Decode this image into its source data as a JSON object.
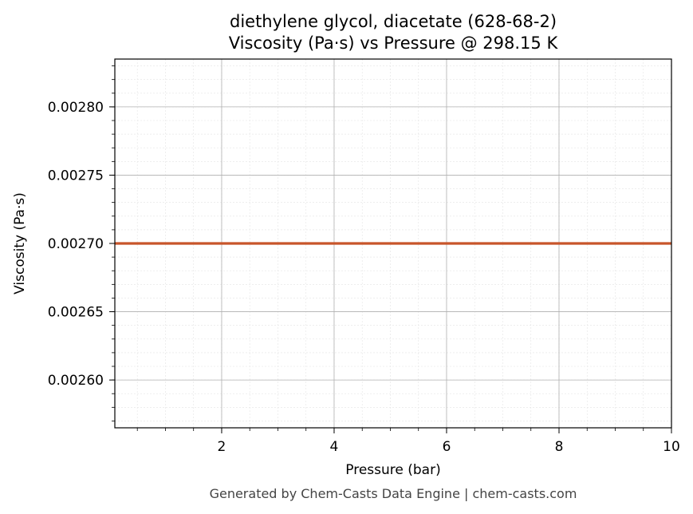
{
  "chart_data": {
    "type": "line",
    "title_line1": "diethylene glycol, diacetate (628-68-2)",
    "title_line2": "Viscosity (Pa·s) vs Pressure @ 298.15 K",
    "xlabel": "Pressure (bar)",
    "ylabel": "Viscosity (Pa·s)",
    "xlim": [
      0.1,
      10
    ],
    "ylim": [
      0.002565,
      0.002835
    ],
    "x_ticks": [
      2,
      4,
      6,
      8,
      10
    ],
    "x_tick_labels": [
      "2",
      "4",
      "6",
      "8",
      "10"
    ],
    "y_ticks": [
      0.0026,
      0.00265,
      0.0027,
      0.00275,
      0.0028
    ],
    "y_tick_labels": [
      "0.00260",
      "0.00265",
      "0.00270",
      "0.00275",
      "0.00280"
    ],
    "grid": true,
    "series": [
      {
        "x": [
          0.1,
          10
        ],
        "y": [
          0.0027,
          0.0027
        ],
        "color": "#c8552a"
      }
    ]
  },
  "footer": "Generated by Chem-Casts Data Engine | chem-casts.com"
}
